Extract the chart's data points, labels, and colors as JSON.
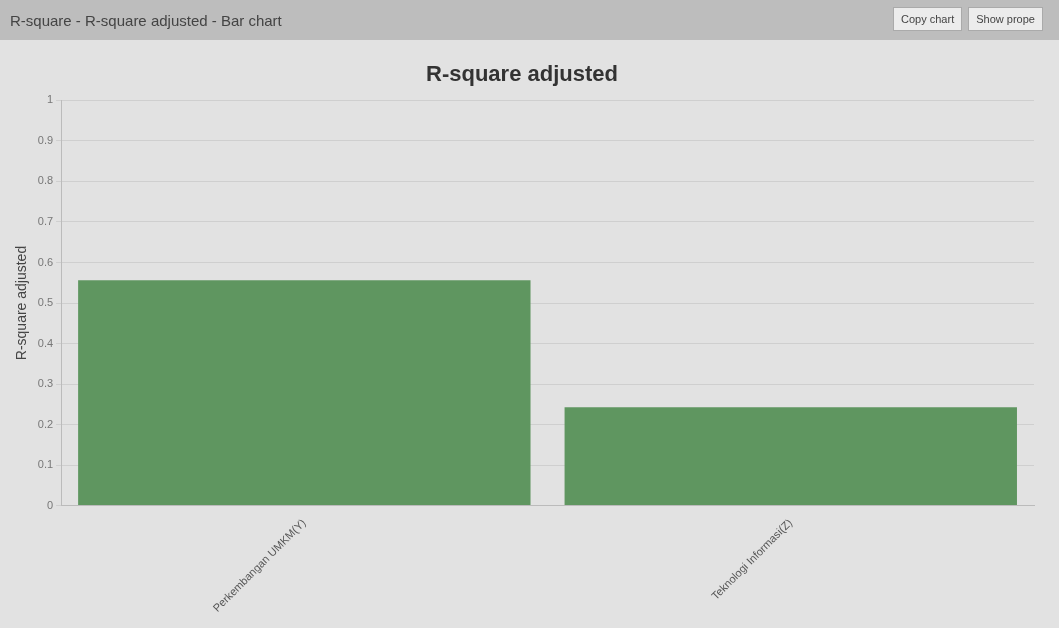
{
  "chart_data": {
    "type": "bar",
    "title": "R-square adjusted",
    "ylabel": "R-square adjusted",
    "categories": [
      "Perkembangan UMKM(Y)",
      "Teknologi Informasi(Z)"
    ],
    "values": [
      0.556,
      0.243
    ],
    "color": "#5f9660",
    "ylim": [
      0,
      1
    ],
    "yticks": [
      0,
      0.1,
      0.2,
      0.3,
      0.4,
      0.5,
      0.6,
      0.7,
      0.8,
      0.9,
      1
    ],
    "grid": "y",
    "annotations": [
      "R-square - R-square adjusted - Bar chart",
      "Copy chart",
      "Show prope"
    ]
  }
}
